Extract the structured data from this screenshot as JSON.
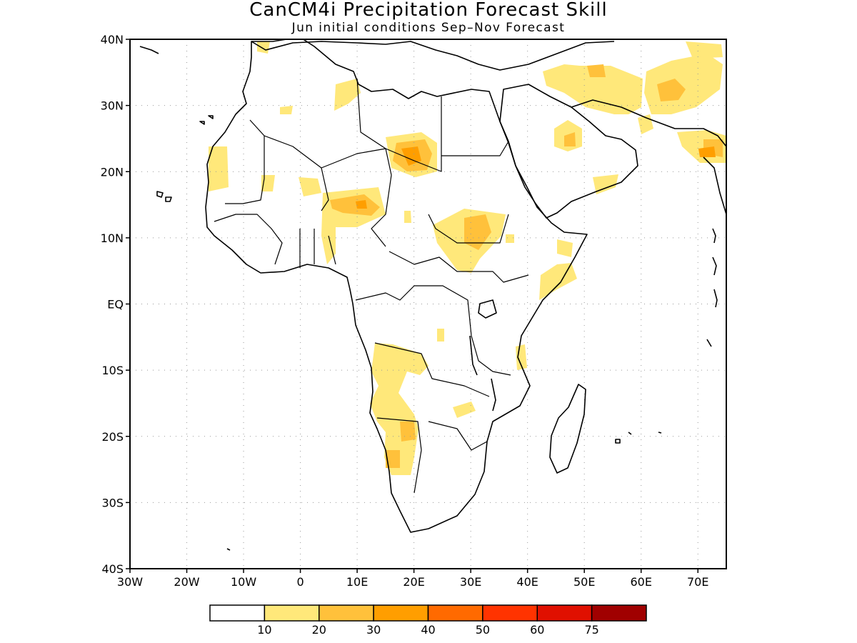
{
  "title": "CanCM4i Precipitation Forecast Skill",
  "subtitle": "Jun initial conditions  Sep–Nov Forecast",
  "map": {
    "lon_range": [
      -30,
      75
    ],
    "lat_range": [
      -40,
      40
    ],
    "grid": true,
    "lat_labels": [
      "40N",
      "30N",
      "20N",
      "10N",
      "EQ",
      "10S",
      "20S",
      "30S",
      "40S"
    ],
    "lon_labels": [
      "30W",
      "20W",
      "10W",
      "0",
      "10E",
      "20E",
      "30E",
      "40E",
      "50E",
      "60E",
      "70E"
    ]
  },
  "legend": {
    "tick_labels": [
      "10",
      "20",
      "30",
      "40",
      "50",
      "60",
      "75"
    ],
    "colors": [
      "#ffffff",
      "#ffe87a",
      "#ffc13b",
      "#ff9e00",
      "#ff6a00",
      "#ff3300",
      "#e01000",
      "#a00000"
    ]
  }
}
